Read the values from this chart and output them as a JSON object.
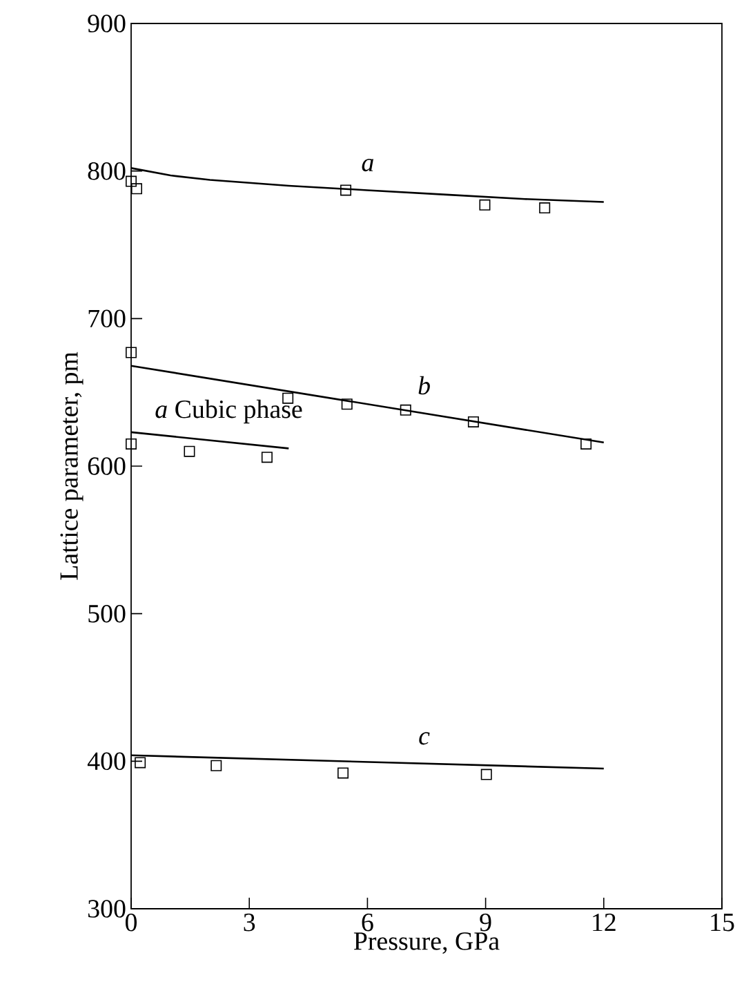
{
  "chart_data": {
    "type": "scatter",
    "xlabel": "Pressure, GPa",
    "ylabel": "Lattice parameter, pm",
    "xlim": [
      0,
      15
    ],
    "ylim": [
      300,
      900
    ],
    "xticks": [
      0,
      3,
      6,
      9,
      12,
      15
    ],
    "yticks": [
      300,
      400,
      500,
      600,
      700,
      800,
      900
    ],
    "grid": false,
    "marker": "square",
    "series": [
      {
        "color": "#000000",
        "x": [
          0,
          0.14,
          5.45,
          8.98,
          10.5
        ],
        "values": [
          793,
          788,
          787,
          777,
          775
        ]
      },
      {
        "type": "line",
        "name": "*a*",
        "color": "#000000",
        "marker": "none",
        "x": [
          0,
          1,
          2,
          4,
          6,
          8,
          10,
          12
        ],
        "values": [
          802,
          797,
          794,
          790,
          787,
          784,
          781,
          779
        ]
      },
      {
        "color": "#000000",
        "x": [
          0,
          3.98,
          5.48,
          6.97,
          8.69,
          11.55
        ],
        "values": [
          677,
          646,
          642,
          638,
          630,
          615
        ]
      },
      {
        "type": "line",
        "name": "*b*",
        "color": "#000000",
        "marker": "none",
        "x": [
          0,
          12
        ],
        "values": [
          668,
          616
        ]
      },
      {
        "color": "#000000",
        "x": [
          0,
          1.48,
          3.45
        ],
        "values": [
          615,
          610,
          606
        ]
      },
      {
        "type": "line",
        "name": "*a* Cubic phase",
        "color": "#000000",
        "marker": "none",
        "x": [
          0,
          4
        ],
        "values": [
          623,
          612
        ]
      },
      {
        "color": "#000000",
        "x": [
          0.23,
          2.16,
          5.38,
          9.02
        ],
        "values": [
          399,
          397,
          392,
          391
        ]
      },
      {
        "type": "line",
        "name": "*c*",
        "color": "#000000",
        "marker": "none",
        "x": [
          0,
          12
        ],
        "values": [
          404,
          395
        ]
      }
    ]
  }
}
